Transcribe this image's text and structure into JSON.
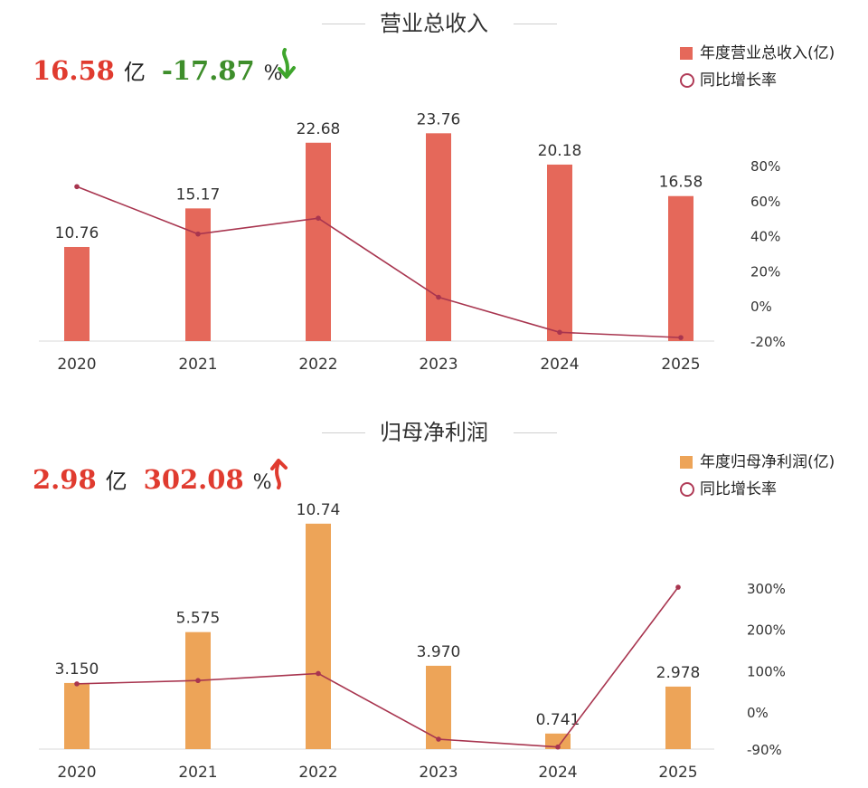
{
  "panels": [
    {
      "title": "营业总收入",
      "kpi_value": "16.58",
      "kpi_unit": "亿",
      "kpi_change": "-17.87",
      "kpi_change_unit": "%",
      "kpi_value_color": "#e03b2f",
      "kpi_change_color": "#3e8e2b",
      "arrow_direction": "down",
      "arrow_color": "#3ea52c",
      "arrow_icon": "down-arrow-icon",
      "legend_bar": "年度营业总收入(亿)",
      "legend_line": "同比增长率",
      "bar_color": "#e5685a",
      "line_color": "#a8354f"
    },
    {
      "title": "归母净利润",
      "kpi_value": "2.98",
      "kpi_unit": "亿",
      "kpi_change": "302.08",
      "kpi_change_unit": "%",
      "kpi_value_color": "#e03b2f",
      "kpi_change_color": "#e03b2f",
      "arrow_direction": "up",
      "arrow_color": "#e03b2f",
      "arrow_icon": "up-arrow-icon",
      "legend_bar": "年度归母净利润(亿)",
      "legend_line": "同比增长率",
      "bar_color": "#eda458",
      "line_color": "#a8354f"
    }
  ],
  "chart_data": [
    {
      "type": "bar",
      "title": "营业总收入",
      "categories": [
        "2020",
        "2021",
        "2022",
        "2023",
        "2024",
        "2025"
      ],
      "series": [
        {
          "name": "年度营业总收入(亿)",
          "values": [
            10.76,
            15.17,
            22.68,
            23.76,
            20.18,
            16.58
          ],
          "labels": [
            "10.76",
            "15.17",
            "22.68",
            "23.76",
            "20.18",
            "16.58"
          ]
        },
        {
          "name": "同比增长率",
          "type": "line",
          "axis": "right",
          "values": [
            68,
            41,
            50,
            5,
            -15,
            -18
          ]
        }
      ],
      "ylim": [
        0,
        30
      ],
      "y2lim": [
        -20,
        80
      ],
      "y2ticks": [
        "80%",
        "60%",
        "40%",
        "20%",
        "0%",
        "-20%"
      ],
      "y2tick_values": [
        80,
        60,
        40,
        20,
        0,
        -20
      ],
      "grid": false,
      "legend_position": "top-right"
    },
    {
      "type": "bar",
      "title": "归母净利润",
      "categories": [
        "2020",
        "2021",
        "2022",
        "2023",
        "2024",
        "2025"
      ],
      "series": [
        {
          "name": "年度归母净利润(亿)",
          "values": [
            3.15,
            5.575,
            10.74,
            3.97,
            0.741,
            2.978
          ],
          "labels": [
            "3.150",
            "5.575",
            "10.74",
            "3.970",
            "0.741",
            "2.978"
          ]
        },
        {
          "name": "同比增长率",
          "type": "line",
          "axis": "right",
          "values": [
            68,
            76,
            93,
            -66,
            -85,
            302
          ]
        }
      ],
      "ylim": [
        0,
        12.5
      ],
      "y2lim": [
        -90,
        300
      ],
      "y2ticks": [
        "300%",
        "200%",
        "100%",
        "0%",
        "-90%"
      ],
      "y2tick_values": [
        300,
        200,
        100,
        0,
        -90
      ],
      "grid": false,
      "legend_position": "top-right"
    }
  ]
}
